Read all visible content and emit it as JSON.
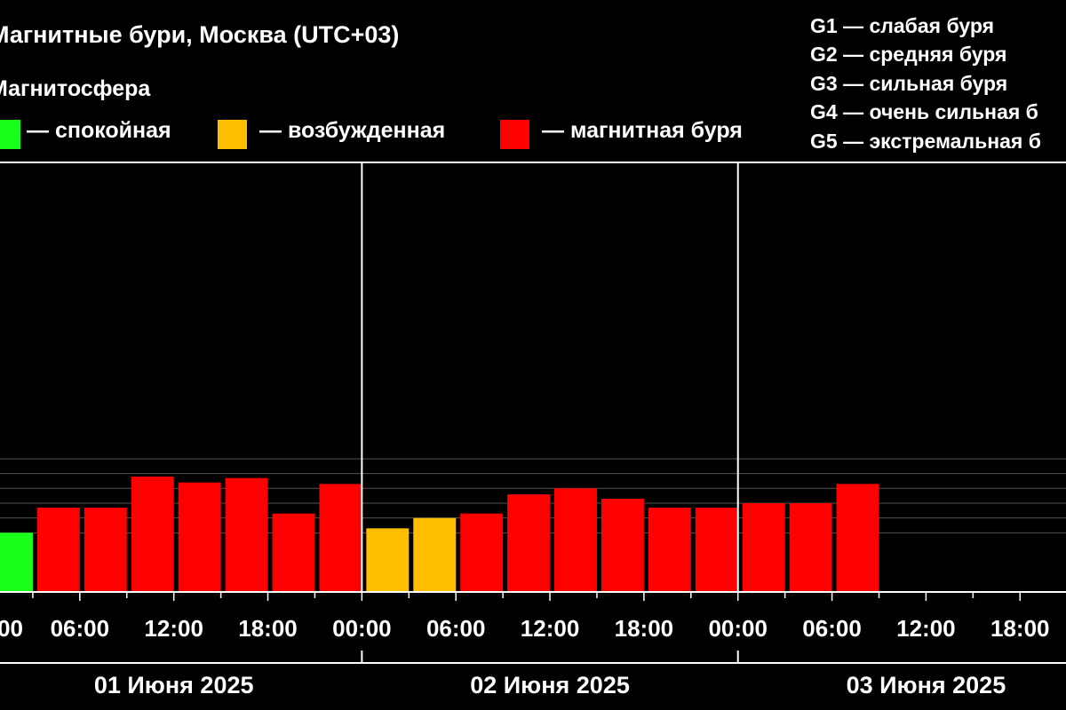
{
  "header": {
    "title": "Магнитные бури, Москва (UTC+03)",
    "subtitle": "Магнитосфера"
  },
  "legend": [
    {
      "label": "— спокойная",
      "color": "#1aff1a"
    },
    {
      "label": "— возбужденная",
      "color": "#ffbf00"
    },
    {
      "label": "— магнитная буря",
      "color": "#ff0000"
    }
  ],
  "g_scale": [
    {
      "label": "G1 — слабая буря"
    },
    {
      "label": "G2 — средняя буря"
    },
    {
      "label": "G3 — сильная буря"
    },
    {
      "label": "G4 — очень сильная б"
    },
    {
      "label": "G5 — экстремальная б"
    }
  ],
  "chart_data": {
    "type": "bar",
    "title": "Магнитные бури, Москва (UTC+03)",
    "days": [
      "01 Июня 2025",
      "02 Июня 2025",
      "03 Июня 2025"
    ],
    "x_tick_labels": [
      "00",
      "06:00",
      "12:00",
      "18:00",
      "00:00",
      "06:00",
      "12:00",
      "18:00",
      "00:00",
      "06:00",
      "12:00",
      "18:00"
    ],
    "interval_hours": 3,
    "ylim": [
      0,
      9
    ],
    "grid": true,
    "values": [
      4.0,
      5.7,
      5.7,
      7.8,
      7.4,
      7.7,
      5.3,
      7.3,
      4.3,
      5.0,
      5.3,
      6.6,
      7.0,
      6.3,
      5.7,
      5.7,
      6.0,
      6.0,
      7.3
    ],
    "levels": [
      "quiet",
      "storm",
      "storm",
      "storm",
      "storm",
      "storm",
      "storm",
      "storm",
      "excited",
      "excited",
      "storm",
      "storm",
      "storm",
      "storm",
      "storm",
      "storm",
      "storm",
      "storm",
      "storm"
    ],
    "colors": {
      "quiet": "#1aff1a",
      "excited": "#ffbf00",
      "storm": "#ff0000"
    }
  }
}
